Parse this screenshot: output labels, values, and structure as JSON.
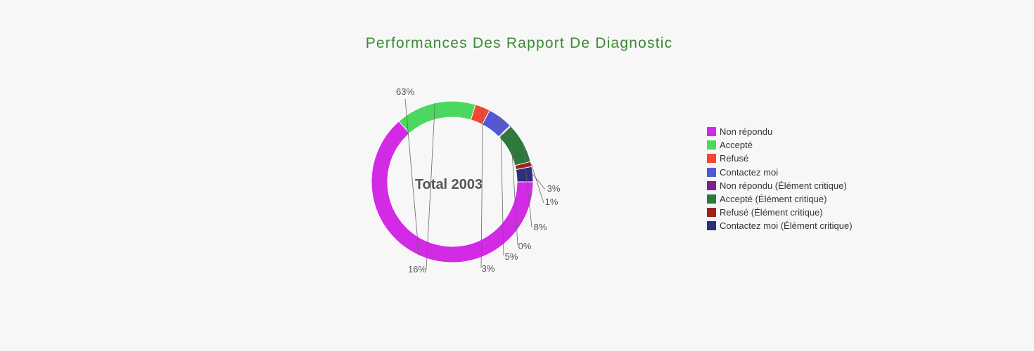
{
  "chart_data": {
    "type": "pie",
    "title": "Performances Des Rapport De Diagnostic",
    "center_label": "Total 2003",
    "legend_position": "right",
    "series": [
      {
        "name": "Non répondu",
        "value": 63,
        "label": "63%",
        "color": "#d22ae5"
      },
      {
        "name": "Accepté",
        "value": 16,
        "label": "16%",
        "color": "#4bd85f"
      },
      {
        "name": "Refusé",
        "value": 3,
        "label": "3%",
        "color": "#f64533"
      },
      {
        "name": "Contactez moi",
        "value": 5,
        "label": "5%",
        "color": "#5257d8"
      },
      {
        "name": "Non répondu (Élément critique)",
        "value": 0.2,
        "label": "0%",
        "color": "#7d1f8f"
      },
      {
        "name": "Accepté (Élément critique)",
        "value": 8,
        "label": "8%",
        "color": "#2b7a3b"
      },
      {
        "name": "Refusé (Élément critique)",
        "value": 1,
        "label": "1%",
        "color": "#9b231c"
      },
      {
        "name": "Contactez moi (Élément critique)",
        "value": 3,
        "label": "3%",
        "color": "#2c2f7c"
      }
    ]
  }
}
